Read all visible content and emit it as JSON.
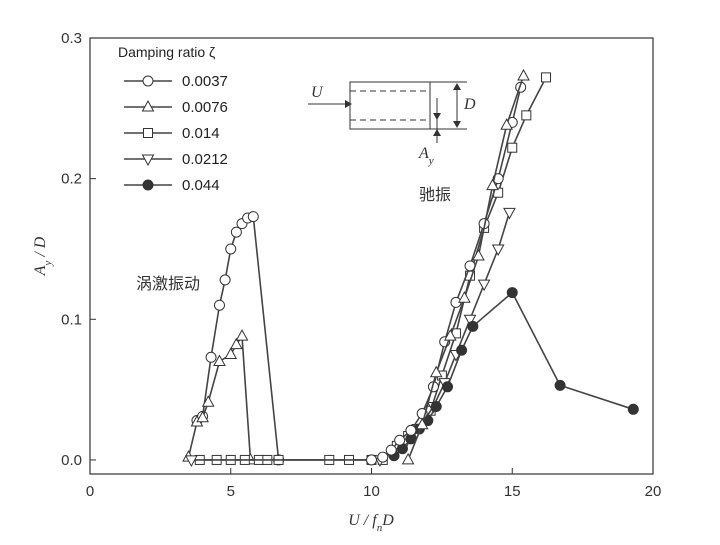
{
  "chart_data": {
    "type": "line",
    "xlabel": "U / f_n D",
    "ylabel": "A_y / D",
    "xlim": [
      0,
      20
    ],
    "ylim": [
      -0.01,
      0.3
    ],
    "xticks": [
      "0",
      "5",
      "10",
      "15",
      "20"
    ],
    "yticks": [
      "0.0",
      "0.1",
      "0.2",
      "0.3"
    ],
    "legend_title": "Damping ratio ζ",
    "legend_position": "top-left",
    "grid": false,
    "annotations": [
      "涡激振动",
      "驰振"
    ],
    "inset_labels": {
      "flow": "U",
      "depth": "D",
      "amplitude": "A_y"
    },
    "series": [
      {
        "name": "0.0037",
        "marker": "circle-open",
        "x": [
          3.8,
          4.0,
          4.3,
          4.6,
          4.8,
          5.0,
          5.2,
          5.4,
          5.6,
          5.8,
          6.7
        ],
        "y": [
          0.028,
          0.031,
          0.073,
          0.11,
          0.128,
          0.15,
          0.162,
          0.168,
          0.172,
          0.173,
          0.0
        ]
      },
      {
        "name": "0.0076",
        "marker": "triangle-up-open",
        "x": [
          3.5,
          3.8,
          4.0,
          4.2,
          4.6,
          5.0,
          5.2,
          5.4,
          5.7
        ],
        "y": [
          0.002,
          0.027,
          0.03,
          0.041,
          0.07,
          0.075,
          0.082,
          0.088,
          0.0
        ]
      },
      {
        "name": "0.014",
        "marker": "square-open",
        "x": [
          3.9,
          4.5,
          5.0,
          5.5,
          6.0,
          6.3,
          6.7,
          8.5,
          9.2,
          10.0,
          10.4,
          10.9,
          11.3,
          11.6,
          12.1,
          12.5,
          13.0,
          13.5,
          14.0,
          14.5,
          15.0,
          15.5,
          16.2
        ],
        "y": [
          0.0,
          0.0,
          0.0,
          0.0,
          0.0,
          0.0,
          0.0,
          0.0,
          0.0,
          0.0,
          0.0,
          0.01,
          0.017,
          0.022,
          0.035,
          0.06,
          0.09,
          0.131,
          0.165,
          0.19,
          0.222,
          0.245,
          0.272
        ]
      },
      {
        "name": "0.0212",
        "marker": "triangle-down-open",
        "x": [
          3.6,
          10.3,
          11.2,
          11.6,
          12.2,
          12.6,
          13.0,
          13.5,
          14.0,
          14.5,
          14.9
        ],
        "y": [
          0.0,
          0.0,
          0.012,
          0.02,
          0.038,
          0.055,
          0.075,
          0.1,
          0.125,
          0.15,
          0.176
        ]
      },
      {
        "name": "0.044",
        "marker": "circle-filled",
        "x": [
          10.8,
          11.1,
          11.4,
          11.7,
          12.0,
          12.3,
          12.7,
          13.2,
          13.6,
          15.0,
          16.7,
          19.3
        ],
        "y": [
          0.003,
          0.008,
          0.015,
          0.022,
          0.028,
          0.038,
          0.052,
          0.078,
          0.095,
          0.119,
          0.053,
          0.036
        ]
      },
      {
        "name": "",
        "marker": "circle-open",
        "x": [
          10.0,
          10.4,
          10.7,
          11.0,
          11.4,
          11.8,
          12.2,
          12.6,
          13.0,
          13.5,
          14.0,
          14.5,
          15.0,
          15.3
        ],
        "y": [
          0.0,
          0.002,
          0.007,
          0.014,
          0.021,
          0.033,
          0.052,
          0.084,
          0.112,
          0.138,
          0.168,
          0.2,
          0.24,
          0.265
        ]
      },
      {
        "name": "",
        "marker": "triangle-up-open",
        "x": [
          11.3,
          11.8,
          12.3,
          12.8,
          13.3,
          13.8,
          14.3,
          14.8,
          15.4
        ],
        "y": [
          0.0,
          0.025,
          0.062,
          0.088,
          0.115,
          0.145,
          0.195,
          0.238,
          0.273
        ]
      }
    ]
  }
}
